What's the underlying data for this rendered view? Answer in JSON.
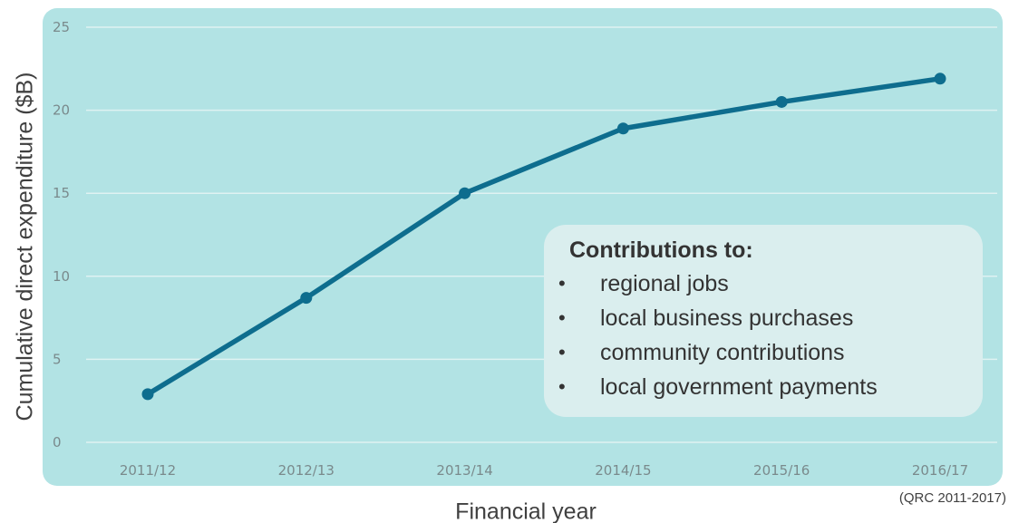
{
  "chart_data": {
    "type": "line",
    "title": "",
    "xlabel": "Financial year",
    "ylabel": "Cumulative direct expenditure ($B)",
    "categories": [
      "2011/12",
      "2012/13",
      "2013/14",
      "2014/15",
      "2015/16",
      "2016/17"
    ],
    "series": [
      {
        "values": [
          2.9,
          8.7,
          15.0,
          18.9,
          20.5,
          21.9
        ]
      }
    ],
    "ylim": [
      0,
      25
    ],
    "yticks": [
      "0",
      "5",
      "10",
      "15",
      "20",
      "25"
    ],
    "grid": true,
    "colors": {
      "line": "#0e6d8e",
      "panel": "#b2e3e4",
      "grid": "#dff2f2",
      "tick_text": "#7a8a8c"
    }
  },
  "source": "(QRC 2011-2017)",
  "callout": {
    "title": "Contributions to:",
    "bullet": "•",
    "items": [
      "regional jobs",
      "local business purchases",
      "community contributions",
      "local government payments"
    ]
  }
}
